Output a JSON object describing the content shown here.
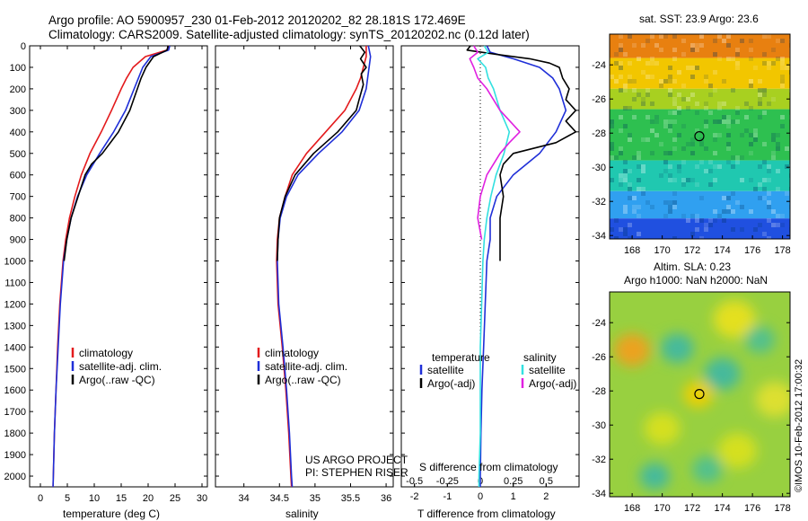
{
  "header": {
    "line1": "Argo profile: AO 5900957_230 01-Feb-2012 20120202_82 28.181S 172.469E",
    "line2": "Climatology: CARS2009. Satellite-adjusted climatology: synTS_20120202.nc (0.12d later)"
  },
  "project_note": {
    "line1": "US ARGO PROJECT",
    "line2": "PI: STEPHEN RISER"
  },
  "credit": "©IMOS 10-Feb-2012 17:00:32",
  "colors": {
    "climatology": "#e31a1c",
    "satellite": "#1f2fd8",
    "argo": "#000000",
    "sat_salinity": "#33e0e0",
    "argo_salinity": "#e020e0"
  },
  "chart_data": [
    {
      "type": "line",
      "xlabel": "temperature (deg C)",
      "ylabel": "",
      "xlim": [
        -2,
        31
      ],
      "ylim": [
        2050,
        0
      ],
      "xticks": [
        "0",
        "5",
        "10",
        "15",
        "20",
        "25",
        "30"
      ],
      "yticks": [
        "0",
        "100",
        "200",
        "300",
        "400",
        "500",
        "600",
        "700",
        "800",
        "900",
        "1000",
        "1100",
        "1200",
        "1300",
        "1400",
        "1500",
        "1600",
        "1700",
        "1800",
        "1900",
        "2000"
      ],
      "legend": [
        "climatology",
        "satellite-adj. clim.",
        "Argo(..raw -QC)"
      ],
      "legend_placement": "lower-center",
      "series": [
        {
          "name": "climatology",
          "color_key": "climatology",
          "depth": [
            0,
            20,
            50,
            100,
            150,
            200,
            300,
            400,
            500,
            600,
            700,
            800,
            900,
            1000,
            1200,
            1400,
            1600,
            1800,
            2000,
            2050
          ],
          "values": [
            23.8,
            23.5,
            19.5,
            17.2,
            16.0,
            15.0,
            13.2,
            11.3,
            9.2,
            7.6,
            6.4,
            5.4,
            4.7,
            4.2,
            3.6,
            3.2,
            2.9,
            2.6,
            2.4,
            2.35
          ]
        },
        {
          "name": "satellite-adj. clim.",
          "color_key": "satellite",
          "depth": [
            0,
            20,
            50,
            100,
            150,
            200,
            300,
            400,
            500,
            600,
            700,
            800,
            900,
            1000,
            1200,
            1400,
            1600,
            1800,
            2000,
            2050
          ],
          "values": [
            24.0,
            23.8,
            20.5,
            19.0,
            18.2,
            17.4,
            15.8,
            13.6,
            11.0,
            8.6,
            6.9,
            5.7,
            4.9,
            4.3,
            3.7,
            3.3,
            2.9,
            2.6,
            2.4,
            2.35
          ]
        },
        {
          "name": "Argo(..raw -QC)",
          "color_key": "argo",
          "depth": [
            0,
            20,
            50,
            100,
            150,
            200,
            300,
            400,
            500,
            550,
            600,
            700,
            800,
            900,
            1000
          ],
          "values": [
            23.7,
            23.5,
            21.0,
            19.6,
            18.7,
            18.0,
            16.6,
            14.5,
            11.5,
            9.5,
            8.3,
            7.0,
            5.7,
            4.9,
            4.4
          ]
        }
      ]
    },
    {
      "type": "line",
      "xlabel": "salinity",
      "ylabel": "",
      "xlim": [
        33.6,
        36.1
      ],
      "ylim": [
        2050,
        0
      ],
      "xticks": [
        "34",
        "34.5",
        "35",
        "35.5",
        "36"
      ],
      "legend": [
        "climatology",
        "satellite-adj. clim.",
        "Argo(..raw -QC)"
      ],
      "legend_placement": "lower-center",
      "series": [
        {
          "name": "climatology",
          "color_key": "climatology",
          "depth": [
            0,
            50,
            100,
            150,
            200,
            300,
            400,
            500,
            600,
            700,
            800,
            900,
            1000,
            1200,
            1400,
            1600,
            1800,
            2000,
            2050
          ],
          "values": [
            35.72,
            35.72,
            35.68,
            35.64,
            35.58,
            35.42,
            35.15,
            34.88,
            34.68,
            34.58,
            34.5,
            34.47,
            34.46,
            34.48,
            34.54,
            34.59,
            34.63,
            34.66,
            34.67
          ]
        },
        {
          "name": "satellite-adj. clim.",
          "color_key": "satellite",
          "depth": [
            0,
            50,
            100,
            150,
            200,
            300,
            400,
            500,
            600,
            700,
            800,
            900,
            1000,
            1200,
            1400,
            1600,
            1800,
            2000,
            2050
          ],
          "values": [
            35.75,
            35.78,
            35.76,
            35.74,
            35.72,
            35.62,
            35.38,
            35.05,
            34.76,
            34.6,
            34.51,
            34.48,
            34.47,
            34.49,
            34.55,
            34.6,
            34.64,
            34.67,
            34.68
          ]
        },
        {
          "name": "Argo(..raw -QC)",
          "color_key": "argo",
          "depth": [
            0,
            30,
            60,
            100,
            130,
            180,
            250,
            300,
            400,
            500,
            600,
            700,
            800,
            900,
            1000
          ],
          "values": [
            35.63,
            35.7,
            35.64,
            35.72,
            35.65,
            35.68,
            35.62,
            35.58,
            35.32,
            34.98,
            34.72,
            34.58,
            34.5,
            34.48,
            34.47
          ]
        }
      ]
    },
    {
      "type": "line",
      "xlabel": "T difference from climatology",
      "xlabel_top": "S difference from climatology",
      "xlim": [
        -2.4,
        3.0
      ],
      "ylim": [
        2050,
        0
      ],
      "xticks": [
        "-2",
        "-1",
        "0",
        "1",
        "2"
      ],
      "xticks_s": [
        "-0.5",
        "-0.25",
        "0",
        "0.25",
        "0.5"
      ],
      "legend": [
        "temperature",
        "satellite",
        "Argo(-adj)",
        "salinity",
        "satellite",
        "Argo(-adj)"
      ],
      "legend_placement": "lower-center",
      "series": [
        {
          "name": "satellite",
          "group": "temperature",
          "color_key": "satellite",
          "depth": [
            0,
            30,
            60,
            100,
            150,
            200,
            300,
            400,
            500,
            600,
            700,
            800,
            900,
            1000,
            1200,
            1400,
            1600,
            1800,
            2000,
            2050
          ],
          "values": [
            0.2,
            0.3,
            1.0,
            1.8,
            2.2,
            2.4,
            2.6,
            2.3,
            1.8,
            1.0,
            0.5,
            0.3,
            0.3,
            0.2,
            0.15,
            0.1,
            0.05,
            0.02,
            0.0,
            0.0
          ]
        },
        {
          "name": "Argo(-adj)",
          "group": "temperature",
          "color_key": "argo",
          "depth": [
            0,
            20,
            40,
            60,
            80,
            100,
            150,
            200,
            250,
            300,
            350,
            400,
            450,
            500,
            550,
            600,
            700,
            800,
            900,
            1000
          ],
          "values": [
            -0.3,
            -0.4,
            0.5,
            1.5,
            2.1,
            2.4,
            2.5,
            2.7,
            2.6,
            2.9,
            2.6,
            2.9,
            2.3,
            1.0,
            0.7,
            0.6,
            0.7,
            0.6,
            0.6,
            0.6
          ]
        },
        {
          "name": "satellite",
          "group": "salinity",
          "color_key": "sat_salinity",
          "depth": [
            0,
            30,
            60,
            100,
            150,
            200,
            300,
            400,
            500,
            600,
            700,
            800,
            900,
            1000,
            1200,
            1400,
            1600,
            1800,
            2000,
            2050
          ],
          "values": [
            0.03,
            0.06,
            -0.02,
            0.04,
            0.06,
            0.1,
            0.15,
            0.22,
            0.18,
            0.12,
            0.08,
            0.05,
            0.03,
            0.02,
            0.01,
            0.0,
            0.0,
            0.0,
            -0.01,
            -0.01
          ]
        },
        {
          "name": "Argo(-adj)",
          "group": "salinity",
          "color_key": "argo_salinity",
          "depth": [
            0,
            30,
            60,
            100,
            150,
            200,
            300,
            400,
            450,
            500,
            600,
            700,
            800,
            900
          ],
          "values": [
            -0.05,
            -0.02,
            -0.08,
            -0.05,
            -0.02,
            0.05,
            0.15,
            0.3,
            0.22,
            0.15,
            0.05,
            0.0,
            -0.02,
            0.01
          ]
        }
      ]
    },
    {
      "type": "heatmap",
      "title": "sat. SST: 23.9 Argo: 23.6",
      "xlim": [
        166.5,
        178.5
      ],
      "ylim": [
        -34.2,
        -22.2
      ],
      "xticks": [
        "168",
        "170",
        "172",
        "174",
        "176",
        "178"
      ],
      "yticks": [
        "-24",
        "-26",
        "-28",
        "-30",
        "-32",
        "-34"
      ],
      "marker": {
        "lon": 172.469,
        "lat": -28.181
      },
      "color_bands": [
        {
          "lat_from": -22.2,
          "lat_to": -23.6,
          "color": "#e88010"
        },
        {
          "lat_from": -23.6,
          "lat_to": -25.4,
          "color": "#f2c600"
        },
        {
          "lat_from": -25.4,
          "lat_to": -26.6,
          "color": "#a8d020"
        },
        {
          "lat_from": -26.6,
          "lat_to": -29.6,
          "color": "#2ec050"
        },
        {
          "lat_from": -29.6,
          "lat_to": -31.4,
          "color": "#20c8b0"
        },
        {
          "lat_from": -31.4,
          "lat_to": -33.0,
          "color": "#30a0f0"
        },
        {
          "lat_from": -33.0,
          "lat_to": -34.2,
          "color": "#2050e0"
        }
      ]
    },
    {
      "type": "heatmap",
      "title": "Altim. SLA: 0.23",
      "subtitle": "Argo h1000: NaN h2000: NaN",
      "xlim": [
        166.5,
        178.5
      ],
      "ylim": [
        -34.2,
        -22.2
      ],
      "xticks": [
        "168",
        "170",
        "172",
        "174",
        "176",
        "178"
      ],
      "yticks": [
        "-24",
        "-26",
        "-28",
        "-30",
        "-32",
        "-34"
      ],
      "marker": {
        "lon": 172.469,
        "lat": -28.181
      },
      "blobs": [
        {
          "lon": 168.0,
          "lat": -25.6,
          "r": 1.2,
          "color": "#f0a020"
        },
        {
          "lon": 172.4,
          "lat": -28.2,
          "r": 1.0,
          "color": "#f0d000"
        },
        {
          "lon": 174.8,
          "lat": -23.8,
          "r": 1.4,
          "color": "#e8e020"
        },
        {
          "lon": 177.5,
          "lat": -28.5,
          "r": 1.3,
          "color": "#e0e030"
        },
        {
          "lon": 170.0,
          "lat": -30.2,
          "r": 1.2,
          "color": "#d8e020"
        },
        {
          "lon": 175.0,
          "lat": -31.5,
          "r": 1.3,
          "color": "#d8e020"
        },
        {
          "lon": 171.0,
          "lat": -25.5,
          "r": 1.1,
          "color": "#40b8a0"
        },
        {
          "lon": 174.0,
          "lat": -27.0,
          "r": 1.2,
          "color": "#40b8a0"
        },
        {
          "lon": 169.5,
          "lat": -33.0,
          "r": 1.0,
          "color": "#40b8a0"
        },
        {
          "lon": 176.5,
          "lat": -25.0,
          "r": 1.0,
          "color": "#50c090"
        },
        {
          "lon": 173.0,
          "lat": -32.6,
          "r": 1.0,
          "color": "#50c090"
        }
      ]
    }
  ]
}
